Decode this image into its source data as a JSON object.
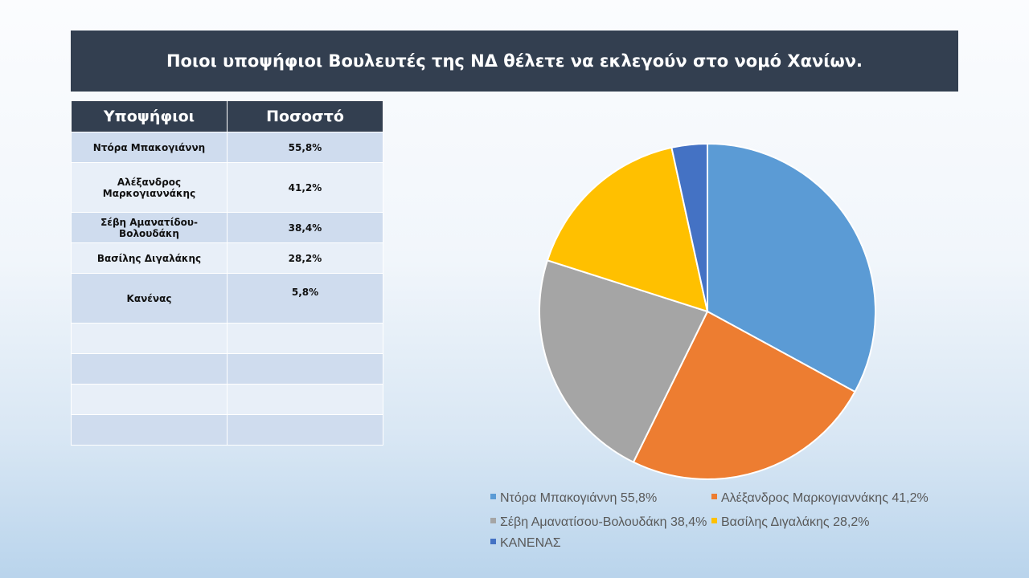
{
  "title": "Ποιοι υποψήφιοι Βουλευτές της ΝΔ θέλετε να εκλεγούν στο νομό Χανίων.",
  "table": {
    "headers": [
      "Υποψήφιοι",
      "Ποσοστό"
    ],
    "rows": [
      {
        "name": "Ντόρα Μπακογιάννη",
        "value": "55,8%"
      },
      {
        "name": "Αλέξανδρος Μαρκογιαννάκης",
        "value": "41,2%"
      },
      {
        "name": "Σέβη Αμανατίδου-Βολουδάκη",
        "value": "38,4%"
      },
      {
        "name": "Βασίλης Διγαλάκης",
        "value": "28,2%"
      },
      {
        "name": "Κανένας",
        "value": "5,8%"
      },
      {
        "name": "",
        "value": ""
      },
      {
        "name": "",
        "value": ""
      },
      {
        "name": "",
        "value": ""
      },
      {
        "name": "",
        "value": ""
      }
    ]
  },
  "chart_data": {
    "type": "pie",
    "title": "",
    "categories": [
      "Ντόρα Μπακογιάννη 55,8%",
      "Αλέξανδρος Μαρκογιαννάκης 41,2%",
      "Σέβη Αμανατίσου-Βολουδάκη 38,4%",
      "Βασίλης Διγαλάκης 28,2%",
      "ΚΑΝΕΝΑΣ"
    ],
    "values": [
      55.8,
      41.2,
      38.4,
      28.2,
      5.8
    ],
    "colors": [
      "#5b9bd5",
      "#ed7d31",
      "#a5a5a5",
      "#ffc000",
      "#4472c4"
    ],
    "legend": "bottom"
  }
}
